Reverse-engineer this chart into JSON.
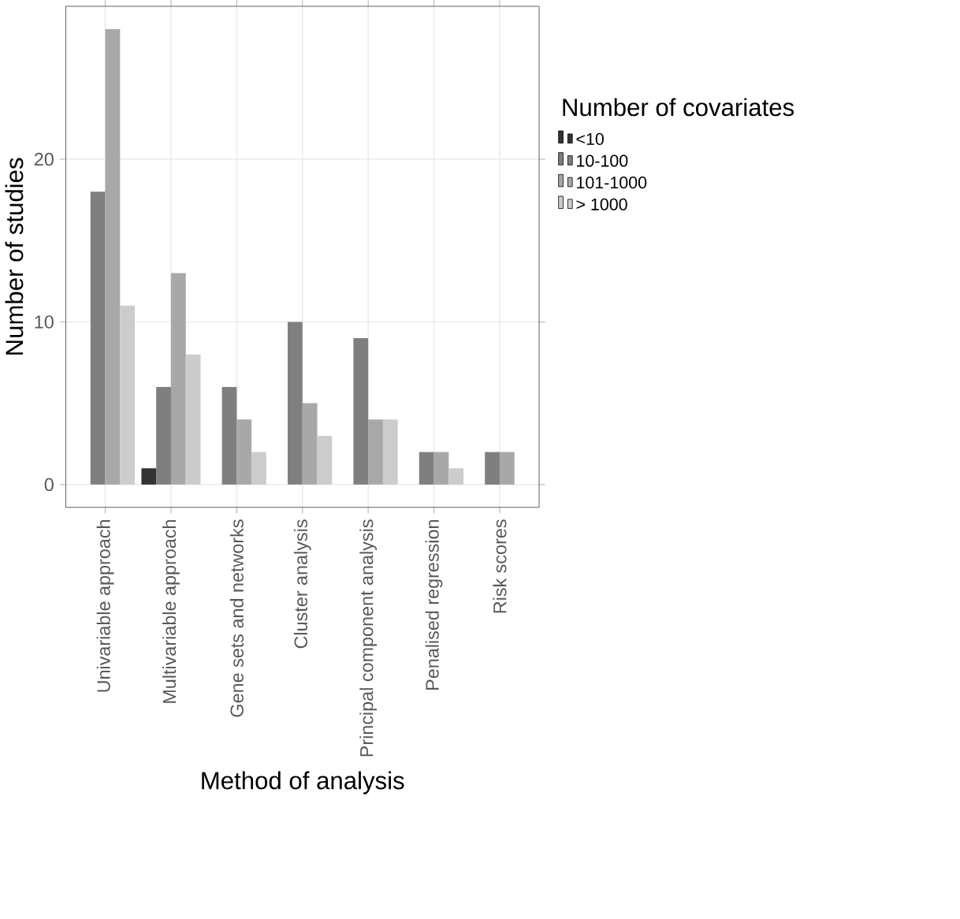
{
  "chart_data": {
    "type": "bar",
    "xlabel": "Method of analysis",
    "ylabel": "Number of studies",
    "legend_title": "Number of covariates",
    "legend": "right",
    "grid": true,
    "categories": [
      "Univariable approach",
      "Multivariable approach",
      "Gene sets and networks",
      "Cluster analysis",
      "Principal component analysis",
      "Penalised regression",
      "Risk scores"
    ],
    "series": [
      {
        "name": "<10",
        "color": "#333333",
        "values": [
          null,
          1,
          null,
          null,
          null,
          null,
          null
        ]
      },
      {
        "name": "10-100",
        "color": "#7f7f7f",
        "values": [
          18,
          6,
          6,
          10,
          9,
          2,
          2
        ]
      },
      {
        "name": "101-1000",
        "color": "#a8a8a8",
        "values": [
          28,
          13,
          4,
          5,
          4,
          2,
          2
        ]
      },
      {
        "name": "> 1000",
        "color": "#cccccc",
        "values": [
          11,
          8,
          2,
          3,
          4,
          1,
          null
        ]
      }
    ],
    "ylim": [
      -1.4,
      29.4
    ],
    "yticks": [
      0,
      10,
      20
    ]
  }
}
